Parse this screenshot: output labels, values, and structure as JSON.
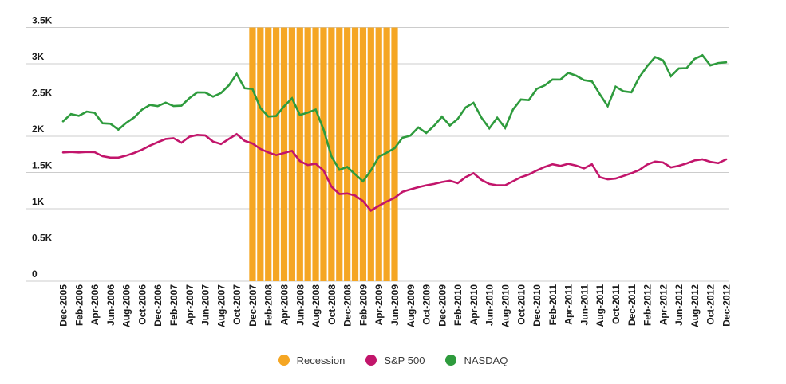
{
  "chart_data": {
    "type": "line",
    "title": "",
    "xlabel": "",
    "ylabel": "",
    "ylim": [
      0,
      3500
    ],
    "grid": true,
    "legend_position": "bottom",
    "x_tick_every": 2,
    "y_ticks": [
      {
        "value": 0,
        "label": "0"
      },
      {
        "value": 500,
        "label": "0.5K"
      },
      {
        "value": 1000,
        "label": "1K"
      },
      {
        "value": 1500,
        "label": "1.5K"
      },
      {
        "value": 2000,
        "label": "2K"
      },
      {
        "value": 2500,
        "label": "2.5K"
      },
      {
        "value": 3000,
        "label": "3K"
      },
      {
        "value": 3500,
        "label": "3.5K"
      }
    ],
    "x": [
      "Dec-2005",
      "Jan-2006",
      "Feb-2006",
      "Mar-2006",
      "Apr-2006",
      "May-2006",
      "Jun-2006",
      "Jul-2006",
      "Aug-2006",
      "Sep-2006",
      "Oct-2006",
      "Nov-2006",
      "Dec-2006",
      "Jan-2007",
      "Feb-2007",
      "Mar-2007",
      "Apr-2007",
      "May-2007",
      "Jun-2007",
      "Jul-2007",
      "Aug-2007",
      "Sep-2007",
      "Oct-2007",
      "Nov-2007",
      "Dec-2007",
      "Jan-2008",
      "Feb-2008",
      "Mar-2008",
      "Apr-2008",
      "May-2008",
      "Jun-2008",
      "Jul-2008",
      "Aug-2008",
      "Sep-2008",
      "Oct-2008",
      "Nov-2008",
      "Dec-2008",
      "Jan-2009",
      "Feb-2009",
      "Mar-2009",
      "Apr-2009",
      "May-2009",
      "Jun-2009",
      "Jul-2009",
      "Aug-2009",
      "Sep-2009",
      "Oct-2009",
      "Nov-2009",
      "Dec-2009",
      "Jan-2010",
      "Feb-2010",
      "Mar-2010",
      "Apr-2010",
      "May-2010",
      "Jun-2010",
      "Jul-2010",
      "Aug-2010",
      "Sep-2010",
      "Oct-2010",
      "Nov-2010",
      "Dec-2010",
      "Jan-2011",
      "Feb-2011",
      "Mar-2011",
      "Apr-2011",
      "May-2011",
      "Jun-2011",
      "Jul-2011",
      "Aug-2011",
      "Sep-2011",
      "Oct-2011",
      "Nov-2011",
      "Dec-2011",
      "Jan-2012",
      "Feb-2012",
      "Mar-2012",
      "Apr-2012",
      "May-2012",
      "Jun-2012",
      "Jul-2012",
      "Aug-2012",
      "Sep-2012",
      "Oct-2012",
      "Nov-2012",
      "Dec-2012"
    ],
    "series": [
      {
        "name": "S&P 500",
        "color": "#C2156B",
        "values": [
          1777,
          1784,
          1777,
          1784,
          1780,
          1725,
          1706,
          1706,
          1733,
          1769,
          1814,
          1870,
          1918,
          1963,
          1974,
          1911,
          1993,
          2019,
          2012,
          1926,
          1892,
          1963,
          2030,
          1937,
          1900,
          1825,
          1777,
          1740,
          1769,
          1799,
          1658,
          1602,
          1621,
          1527,
          1304,
          1203,
          1211,
          1181,
          1107,
          975,
          1040,
          1099,
          1150,
          1233,
          1267,
          1297,
          1323,
          1342,
          1368,
          1387,
          1353,
          1435,
          1490,
          1398,
          1342,
          1323,
          1323,
          1379,
          1435,
          1472,
          1527,
          1576,
          1613,
          1591,
          1620,
          1594,
          1557,
          1613,
          1435,
          1405,
          1416,
          1453,
          1490,
          1535,
          1610,
          1650,
          1639,
          1570,
          1592,
          1625,
          1666,
          1681,
          1647,
          1629,
          1681
        ]
      },
      {
        "name": "NASDAQ",
        "color": "#2E9B3D",
        "values": [
          2205,
          2306,
          2281,
          2340,
          2323,
          2179,
          2172,
          2091,
          2184,
          2258,
          2367,
          2432,
          2415,
          2464,
          2416,
          2422,
          2525,
          2605,
          2603,
          2546,
          2596,
          2702,
          2859,
          2661,
          2652,
          2390,
          2271,
          2279,
          2413,
          2523,
          2293,
          2326,
          2368,
          2092,
          1721,
          1536,
          1577,
          1476,
          1378,
          1529,
          1717,
          1774,
          1835,
          1979,
          2009,
          2122,
          2045,
          2145,
          2269,
          2147,
          2238,
          2398,
          2461,
          2257,
          2109,
          2255,
          2114,
          2369,
          2507,
          2498,
          2653,
          2700,
          2782,
          2781,
          2874,
          2835,
          2774,
          2756,
          2579,
          2415,
          2684,
          2620,
          2605,
          2814,
          2967,
          3092,
          3046,
          2827,
          2935,
          2940,
          3067,
          3116,
          2977,
          3010,
          3020
        ]
      }
    ],
    "recession_band": {
      "name": "Recession",
      "color": "#F5A623",
      "start": "Dec-2007",
      "end": "Jun-2009"
    },
    "legend": [
      {
        "label": "Recession",
        "color": "#F5A623"
      },
      {
        "label": "S&P 500",
        "color": "#C2156B"
      },
      {
        "label": "NASDAQ",
        "color": "#2E9B3D"
      }
    ],
    "colors": {
      "gridline": "#CCCCCC",
      "axis_text": "#1A1A1A",
      "legend_text": "#3A3A3A",
      "background": "#FFFFFF"
    }
  }
}
